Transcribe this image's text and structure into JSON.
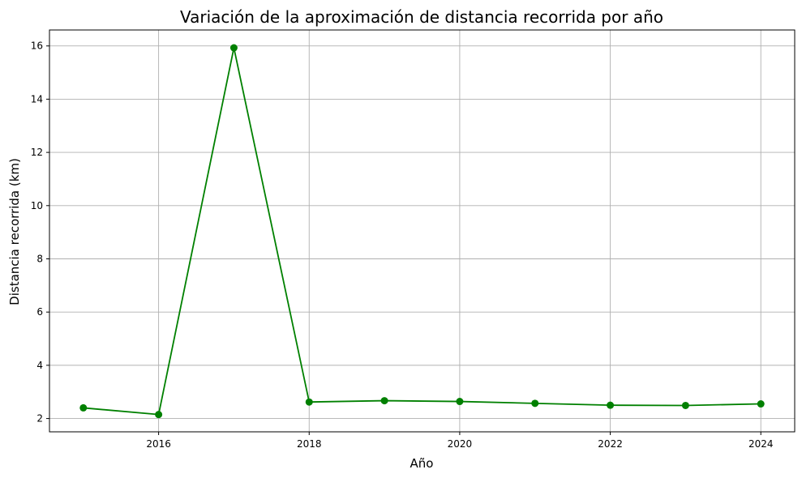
{
  "chart_data": {
    "type": "line",
    "title": "Variación de la aproximación de distancia recorrida por año",
    "xlabel": "Año",
    "ylabel": "Distancia recorrida (km)",
    "x": [
      2015,
      2016,
      2017,
      2018,
      2019,
      2020,
      2021,
      2022,
      2023,
      2024
    ],
    "series": [
      {
        "values": [
          2.4,
          2.15,
          15.93,
          2.62,
          2.67,
          2.64,
          2.57,
          2.5,
          2.49,
          2.55
        ],
        "color": "#008000",
        "marker": "circle"
      }
    ],
    "xlim": [
      2014.55,
      2024.45
    ],
    "ylim": [
      1.5,
      16.6
    ],
    "xticks": [
      2016,
      2018,
      2020,
      2022,
      2024
    ],
    "xtick_labels": [
      "2016",
      "2018",
      "2020",
      "2022",
      "2024"
    ],
    "yticks": [
      2,
      4,
      6,
      8,
      10,
      12,
      14,
      16
    ],
    "ytick_labels": [
      "2",
      "4",
      "6",
      "8",
      "10",
      "12",
      "14",
      "16"
    ],
    "grid": true
  }
}
